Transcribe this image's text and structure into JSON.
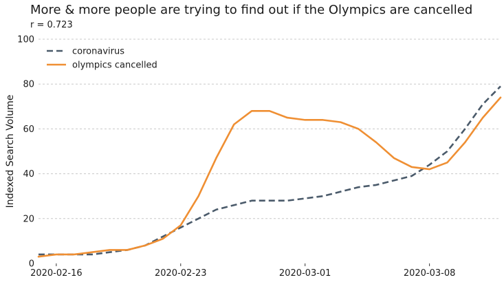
{
  "chart_data": {
    "type": "line",
    "title": "More & more people are trying to find out if the Olympics are cancelled",
    "subtitle": "r = 0.723",
    "xlabel": "",
    "ylabel": "Indexed Search Volume",
    "ylim": [
      0,
      100
    ],
    "yticks": [
      0,
      20,
      40,
      60,
      80,
      100
    ],
    "xticks": [
      "2020-02-16",
      "2020-02-23",
      "2020-03-01",
      "2020-03-08"
    ],
    "x": [
      "2020-02-15",
      "2020-02-16",
      "2020-02-17",
      "2020-02-18",
      "2020-02-19",
      "2020-02-20",
      "2020-02-21",
      "2020-02-22",
      "2020-02-23",
      "2020-02-24",
      "2020-02-25",
      "2020-02-26",
      "2020-02-27",
      "2020-02-28",
      "2020-02-29",
      "2020-03-01",
      "2020-03-02",
      "2020-03-03",
      "2020-03-04",
      "2020-03-05",
      "2020-03-06",
      "2020-03-07",
      "2020-03-08",
      "2020-03-09",
      "2020-03-10",
      "2020-03-11",
      "2020-03-12"
    ],
    "grid": true,
    "legend_position": "top-left",
    "series": [
      {
        "name": "coronavirus",
        "style": "dashed",
        "color": "#4a5a6a",
        "values": [
          4,
          4,
          4,
          4,
          5,
          6,
          8,
          12,
          16,
          20,
          24,
          26,
          28,
          28,
          28,
          29,
          30,
          32,
          34,
          35,
          37,
          39,
          44,
          50,
          60,
          71,
          79
        ]
      },
      {
        "name": "olympics cancelled",
        "style": "solid",
        "color": "#ef8f33",
        "values": [
          3,
          4,
          4,
          5,
          6,
          6,
          8,
          11,
          17,
          30,
          47,
          62,
          68,
          68,
          65,
          64,
          64,
          63,
          60,
          54,
          47,
          43,
          42,
          45,
          54,
          65,
          74
        ]
      }
    ]
  }
}
